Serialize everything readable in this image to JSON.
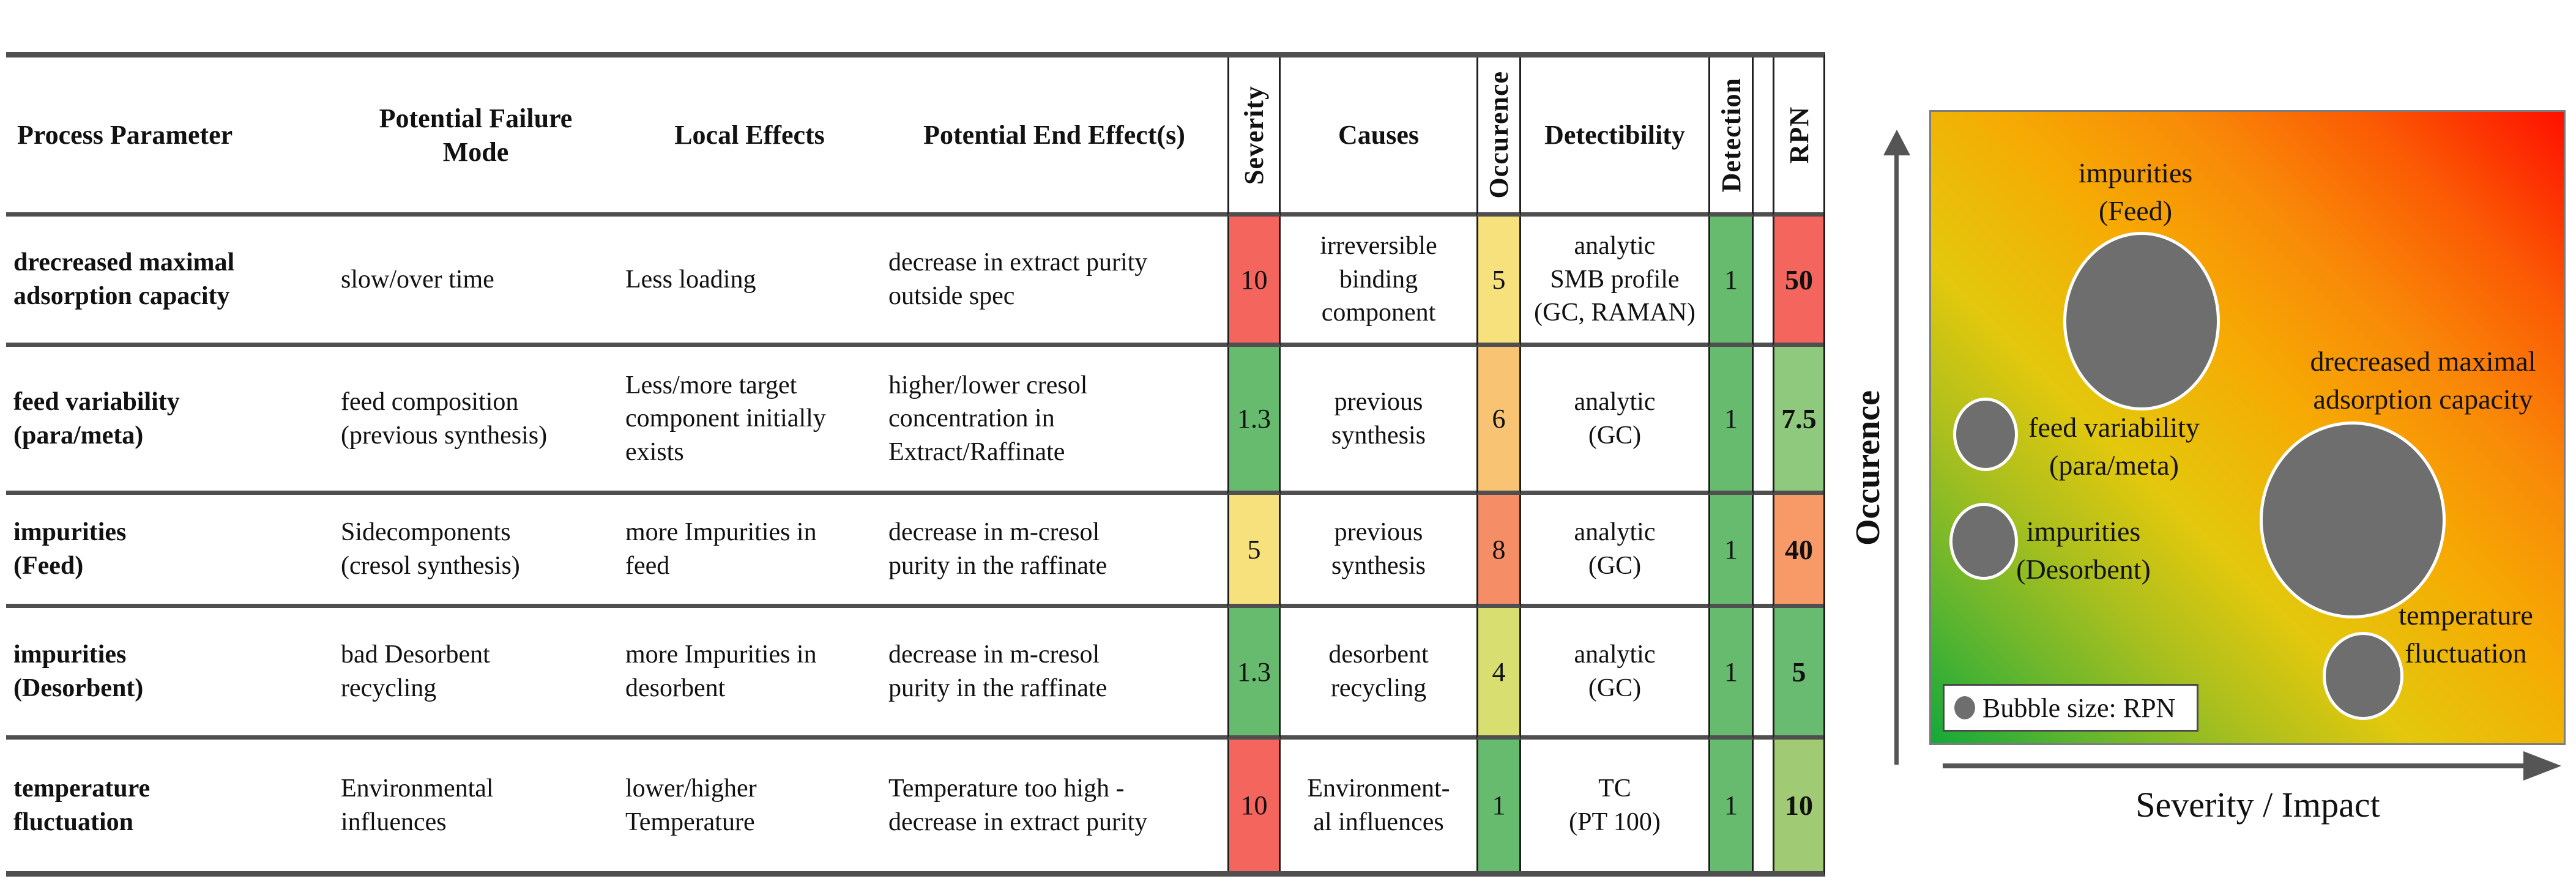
{
  "figure": {
    "table": {
      "headers": [
        "Process Parameter",
        "Potential Failure\nMode",
        "Local Effects",
        "Potential End Effect(s)",
        "Severity",
        "Causes",
        "Occurence",
        "Detectibility",
        "Detection",
        "RPN"
      ],
      "rows": [
        {
          "process_parameter": "drecreased maximal\nadsorption capacity",
          "failure_mode": "slow/over time",
          "local_effects": "Less loading",
          "end_effects": "decrease in extract purity\noutside spec",
          "severity": {
            "value": "10",
            "color": "#f4655e"
          },
          "causes": "irreversible\nbinding\ncomponent",
          "occurence": {
            "value": "5",
            "color": "#f7e17c"
          },
          "detectibility": "analytic\nSMB profile\n(GC, RAMAN)",
          "detection": {
            "value": "1",
            "color": "#66bb6f"
          },
          "rpn": {
            "value": "50",
            "color": "#f4655e"
          }
        },
        {
          "process_parameter": "feed variability\n(para/meta)",
          "failure_mode": "feed composition\n(previous synthesis)",
          "local_effects": "Less/more target\ncomponent initially\nexists",
          "end_effects": "higher/lower cresol\nconcentration in\nExtract/Raffinate",
          "severity": {
            "value": "1.3",
            "color": "#66bb6f"
          },
          "causes": "previous\nsynthesis",
          "occurence": {
            "value": "6",
            "color": "#f8c373"
          },
          "detectibility": "analytic\n(GC)",
          "detection": {
            "value": "1",
            "color": "#66bb6f"
          },
          "rpn": {
            "value": "7.5",
            "color": "#8fc97e"
          }
        },
        {
          "process_parameter": "impurities\n(Feed)",
          "failure_mode": "Sidecomponents\n(cresol synthesis)",
          "local_effects": "more Impurities in\nfeed",
          "end_effects": "decrease in m-cresol\npurity in the raffinate",
          "severity": {
            "value": "5",
            "color": "#f7e17c"
          },
          "causes": "previous\nsynthesis",
          "occurence": {
            "value": "8",
            "color": "#f58e66"
          },
          "detectibility": "analytic\n(GC)",
          "detection": {
            "value": "1",
            "color": "#66bb6f"
          },
          "rpn": {
            "value": "40",
            "color": "#f79a68"
          }
        },
        {
          "process_parameter": "impurities\n(Desorbent)",
          "failure_mode": "bad Desorbent\nrecycling",
          "local_effects": "more Impurities in\ndesorbent",
          "end_effects": "decrease in m-cresol\npurity in the raffinate",
          "severity": {
            "value": "1.3",
            "color": "#66bb6f"
          },
          "causes": "desorbent\nrecycling",
          "occurence": {
            "value": "4",
            "color": "#d9de71"
          },
          "detectibility": "analytic\n(GC)",
          "detection": {
            "value": "1",
            "color": "#66bb6f"
          },
          "rpn": {
            "value": "5",
            "color": "#6abb72"
          }
        },
        {
          "process_parameter": "temperature\nfluctuation",
          "failure_mode": "Environmental\ninfluences",
          "local_effects": "lower/higher\nTemperature",
          "end_effects": "Temperature too high -\ndecrease in extract purity",
          "severity": {
            "value": "10",
            "color": "#f4655e"
          },
          "causes": "Environment-\nal influences",
          "occurence": {
            "value": "1",
            "color": "#66bb6f"
          },
          "detectibility": "TC\n(PT 100)",
          "detection": {
            "value": "1",
            "color": "#66bb6f"
          },
          "rpn": {
            "value": "10",
            "color": "#a0ca73"
          }
        }
      ]
    },
    "chart": {
      "ylabel": "Occurence",
      "xlabel": "Severity / Impact",
      "legend": "Bubble size: RPN",
      "bubble_labels": {
        "feed_impurities": "impurities\n(Feed)",
        "adsorption": "drecreased maximal\nadsorption capacity",
        "feed_variability": "feed variability\n(para/meta)",
        "desorbent_impurities": "impurities\n(Desorbent)",
        "temperature": "temperature\nfluctuation"
      },
      "colors": {
        "bubble_gray": "#6e6e6e",
        "gradient_low": "#13a93a",
        "gradient_mid": "#e3c80d",
        "gradient_high": "#fe1000"
      }
    }
  },
  "chart_data": [
    {
      "type": "table",
      "title": "FMEA table",
      "columns": [
        "Process Parameter",
        "Potential Failure Mode",
        "Local Effects",
        "Potential End Effect(s)",
        "Severity",
        "Causes",
        "Occurence",
        "Detectibility",
        "Detection",
        "RPN"
      ],
      "rows": [
        [
          "drecreased maximal adsorption capacity",
          "slow/over time",
          "Less loading",
          "decrease in extract purity outside spec",
          10,
          "irreversible binding component",
          5,
          "analytic SMB profile (GC, RAMAN)",
          1,
          50
        ],
        [
          "feed variability (para/meta)",
          "feed composition (previous synthesis)",
          "Less/more target component initially exists",
          "higher/lower cresol concentration in Extract/Raffinate",
          1.3,
          "previous synthesis",
          6,
          "analytic (GC)",
          1,
          7.5
        ],
        [
          "impurities (Feed)",
          "Sidecomponents (cresol synthesis)",
          "more Impurities in feed",
          "decrease in m-cresol purity in the raffinate",
          5,
          "previous synthesis",
          8,
          "analytic (GC)",
          1,
          40
        ],
        [
          "impurities (Desorbent)",
          "bad Desorbent recycling",
          "more Impurities in desorbent",
          "decrease in m-cresol purity in the raffinate",
          1.3,
          "desorbent recycling",
          4,
          "analytic (GC)",
          1,
          5
        ],
        [
          "temperature fluctuation",
          "Environmental influences",
          "lower/higher Temperature",
          "Temperature too high - decrease in extract purity",
          10,
          "Environment-al influences",
          1,
          "TC (PT 100)",
          1,
          10
        ]
      ]
    },
    {
      "type": "bubble",
      "xlabel": "Severity / Impact",
      "ylabel": "Occurence",
      "size_legend": "Bubble size: RPN",
      "points": [
        {
          "label": "impurities (Feed)",
          "severity": 5,
          "occurence": 8,
          "rpn": 40
        },
        {
          "label": "drecreased maximal adsorption capacity",
          "severity": 10,
          "occurence": 5,
          "rpn": 50
        },
        {
          "label": "feed variability (para/meta)",
          "severity": 1.3,
          "occurence": 6,
          "rpn": 7.5
        },
        {
          "label": "impurities (Desorbent)",
          "severity": 1.3,
          "occurence": 4,
          "rpn": 5
        },
        {
          "label": "temperature fluctuation",
          "severity": 10,
          "occurence": 1,
          "rpn": 10
        }
      ]
    }
  ]
}
